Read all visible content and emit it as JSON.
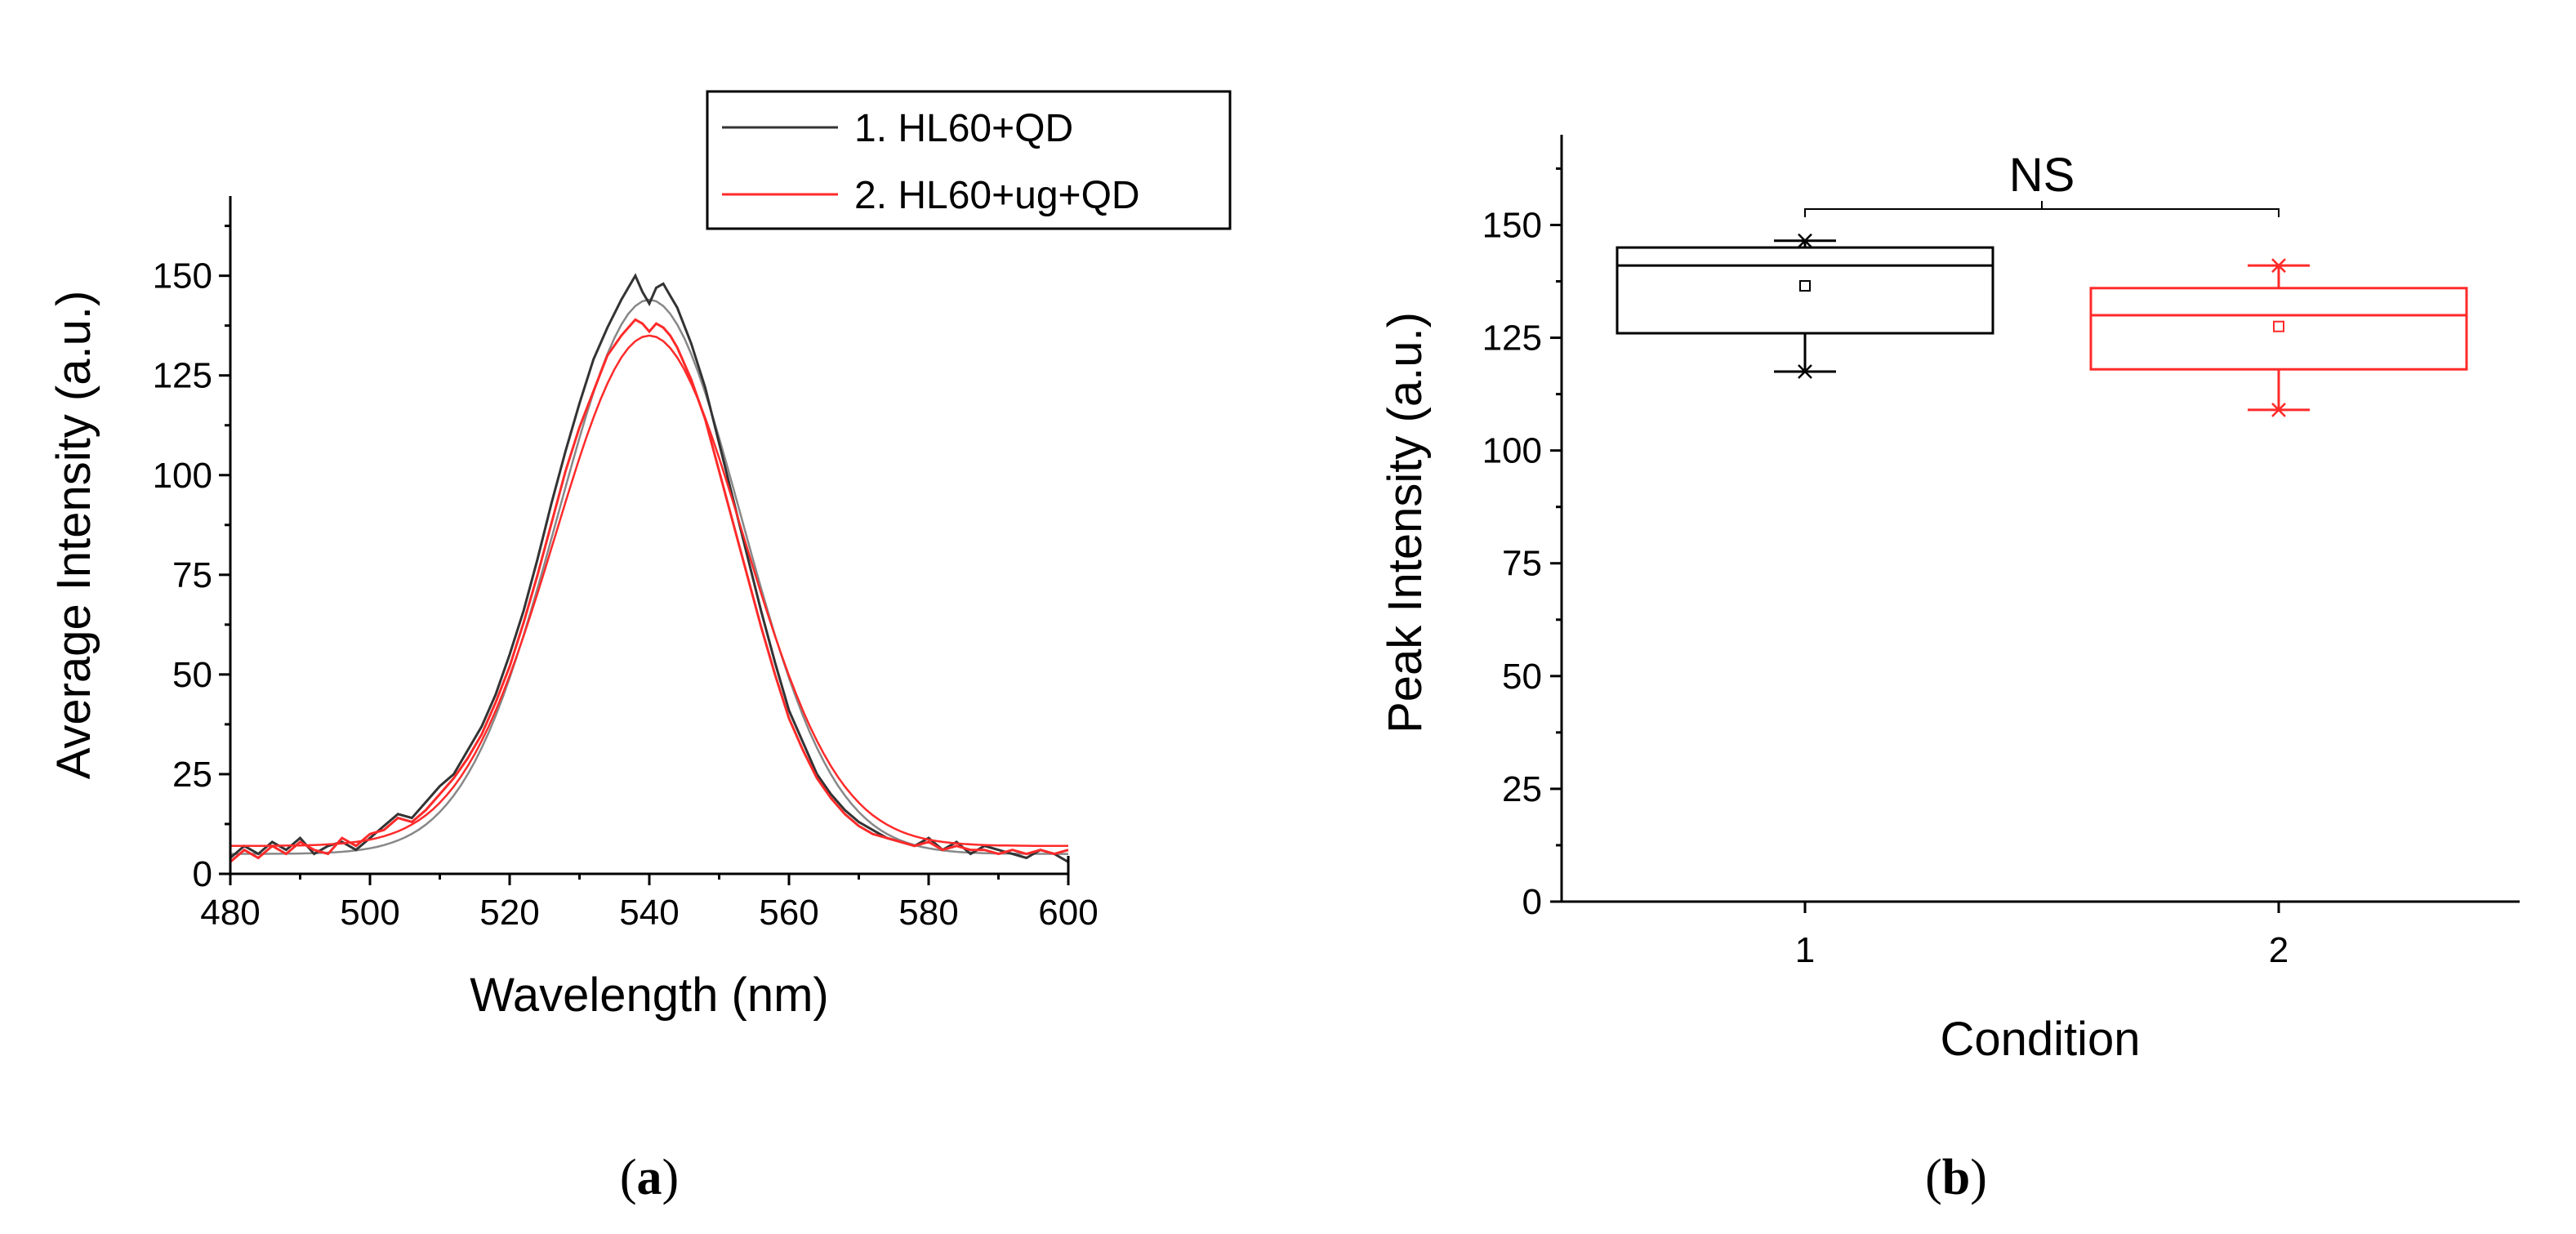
{
  "chart_data": [
    {
      "panel": "a",
      "type": "line",
      "title": "",
      "xlabel": "Wavelength (nm)",
      "ylabel": "Average Intensity (a.u.)",
      "xlim": [
        480,
        600
      ],
      "ylim": [
        0,
        170
      ],
      "xticks": [
        480,
        500,
        520,
        540,
        560,
        580,
        600
      ],
      "yticks": [
        0,
        25,
        50,
        75,
        100,
        125,
        150
      ],
      "legend_position": "top-right",
      "series": [
        {
          "name": "1. HL60+QD",
          "color": "#333333",
          "fit": {
            "baseline": 5,
            "amplitude": 139,
            "center": 540,
            "sigma": 13.2
          },
          "x": [
            480,
            482,
            484,
            486,
            488,
            490,
            492,
            494,
            496,
            498,
            500,
            502,
            504,
            506,
            508,
            510,
            512,
            514,
            516,
            518,
            520,
            522,
            524,
            526,
            528,
            530,
            532,
            534,
            536,
            537,
            538,
            539,
            540,
            541,
            542,
            543,
            544,
            546,
            548,
            550,
            552,
            554,
            556,
            558,
            560,
            562,
            564,
            566,
            568,
            570,
            572,
            574,
            576,
            578,
            580,
            582,
            584,
            586,
            588,
            590,
            592,
            594,
            596,
            598,
            600
          ],
          "y": [
            4,
            7,
            5,
            8,
            6,
            9,
            5,
            7,
            8,
            6,
            9,
            12,
            15,
            14,
            18,
            22,
            25,
            31,
            37,
            45,
            55,
            66,
            79,
            93,
            106,
            118,
            129,
            137,
            144,
            147,
            150,
            146,
            143,
            147,
            148,
            145,
            142,
            133,
            122,
            108,
            94,
            80,
            66,
            53,
            41,
            33,
            25,
            20,
            16,
            13,
            11,
            9,
            8,
            7,
            9,
            6,
            8,
            5,
            7,
            6,
            5,
            4,
            6,
            5,
            3
          ]
        },
        {
          "name": "2. HL60+ug+QD",
          "color": "#ff2a2a",
          "fit": {
            "baseline": 7,
            "amplitude": 128,
            "center": 540,
            "sigma": 13.5
          },
          "x": [
            480,
            482,
            484,
            486,
            488,
            490,
            492,
            494,
            496,
            498,
            500,
            502,
            504,
            506,
            508,
            510,
            512,
            514,
            516,
            518,
            520,
            522,
            524,
            526,
            528,
            530,
            532,
            534,
            536,
            537,
            538,
            539,
            540,
            541,
            542,
            543,
            544,
            546,
            548,
            550,
            552,
            554,
            556,
            558,
            560,
            562,
            564,
            566,
            568,
            570,
            572,
            574,
            576,
            578,
            580,
            582,
            584,
            586,
            588,
            590,
            592,
            594,
            596,
            598,
            600
          ],
          "y": [
            3,
            6,
            4,
            7,
            5,
            8,
            6,
            5,
            9,
            7,
            10,
            11,
            14,
            13,
            16,
            20,
            24,
            29,
            35,
            43,
            52,
            63,
            75,
            88,
            101,
            112,
            121,
            130,
            135,
            137,
            139,
            138,
            136,
            138,
            137,
            135,
            132,
            124,
            114,
            101,
            88,
            75,
            62,
            50,
            39,
            31,
            24,
            19,
            15,
            12,
            10,
            9,
            8,
            7,
            8,
            6,
            7,
            6,
            6,
            5,
            6,
            5,
            6,
            5,
            6
          ]
        }
      ]
    },
    {
      "panel": "b",
      "type": "box",
      "title": "",
      "xlabel": "Condition",
      "ylabel": "Peak Intensity (a.u.)",
      "ylim": [
        0,
        170
      ],
      "yticks": [
        0,
        25,
        50,
        75,
        100,
        125,
        150
      ],
      "categories": [
        "1",
        "2"
      ],
      "boxes": [
        {
          "category": "1",
          "color": "#000000",
          "min": 117.5,
          "q1": 126,
          "median": 141,
          "q3": 145,
          "max": 146.5,
          "mean": 136.5
        },
        {
          "category": "2",
          "color": "#ff2a2a",
          "min": 109,
          "q1": 118,
          "median": 130,
          "q3": 136,
          "max": 141,
          "mean": 127.5
        }
      ],
      "annotation": "NS"
    }
  ],
  "captions": {
    "a_letter": "a",
    "b_letter": "b"
  }
}
